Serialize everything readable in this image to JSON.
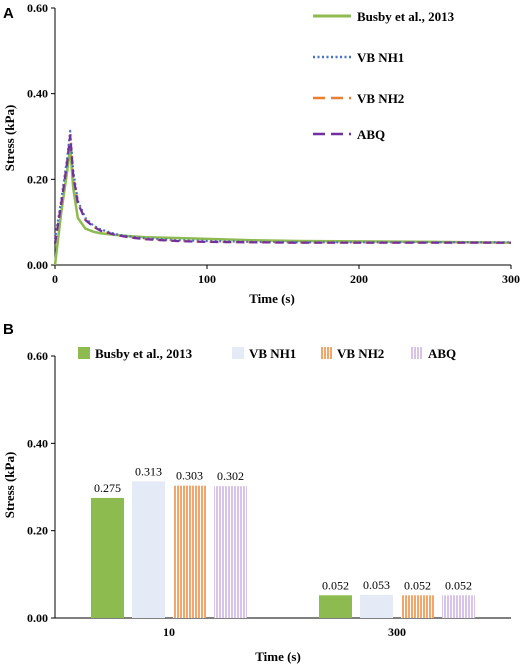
{
  "chart_data": [
    {
      "panel": "A",
      "type": "line",
      "xlabel": "Time (s)",
      "ylabel": "Stress (kPa)",
      "xlim": [
        0,
        300
      ],
      "ylim": [
        0,
        0.6
      ],
      "xticks": [
        "0",
        "100",
        "200",
        "300"
      ],
      "yticks": [
        "0.00",
        "0.20",
        "0.40",
        "0.60"
      ],
      "grid": false,
      "legend": "top-right",
      "series": [
        {
          "name": "Busby et al., 2013",
          "color": "#8dbb4f",
          "style": "solid",
          "x": [
            0,
            4,
            8,
            10,
            12,
            15,
            20,
            25,
            30,
            40,
            50,
            60,
            80,
            100,
            130,
            160,
            200,
            250,
            300
          ],
          "y": [
            0.0,
            0.12,
            0.22,
            0.275,
            0.18,
            0.11,
            0.085,
            0.078,
            0.074,
            0.07,
            0.067,
            0.065,
            0.063,
            0.061,
            0.058,
            0.056,
            0.055,
            0.054,
            0.052
          ]
        },
        {
          "name": "VB NH1",
          "color": "#4472c4",
          "style": "dotted",
          "x": [
            0,
            4,
            8,
            10,
            12,
            15,
            20,
            25,
            30,
            40,
            50,
            60,
            80,
            100,
            130,
            160,
            200,
            250,
            300
          ],
          "y": [
            0.06,
            0.15,
            0.25,
            0.313,
            0.22,
            0.15,
            0.11,
            0.093,
            0.083,
            0.072,
            0.066,
            0.062,
            0.058,
            0.056,
            0.054,
            0.053,
            0.053,
            0.053,
            0.053
          ]
        },
        {
          "name": "VB NH2",
          "color": "#ed7d31",
          "style": "dashed",
          "x": [
            0,
            4,
            8,
            10,
            12,
            15,
            20,
            25,
            30,
            40,
            50,
            60,
            80,
            100,
            130,
            160,
            200,
            250,
            300
          ],
          "y": [
            0.05,
            0.14,
            0.24,
            0.303,
            0.21,
            0.145,
            0.105,
            0.09,
            0.08,
            0.07,
            0.064,
            0.06,
            0.056,
            0.054,
            0.053,
            0.052,
            0.052,
            0.052,
            0.052
          ]
        },
        {
          "name": "ABQ",
          "color": "#7030a0",
          "style": "dashed",
          "x": [
            0,
            4,
            8,
            10,
            12,
            15,
            20,
            25,
            30,
            40,
            50,
            60,
            80,
            100,
            130,
            160,
            200,
            250,
            300
          ],
          "y": [
            0.05,
            0.14,
            0.24,
            0.302,
            0.21,
            0.145,
            0.105,
            0.09,
            0.08,
            0.07,
            0.064,
            0.06,
            0.056,
            0.054,
            0.053,
            0.052,
            0.052,
            0.052,
            0.052
          ]
        }
      ]
    },
    {
      "panel": "B",
      "type": "bar",
      "xlabel": "Time (s)",
      "ylabel": "Stress (kPa)",
      "ylim": [
        0,
        0.6
      ],
      "yticks": [
        "0.00",
        "0.20",
        "0.40",
        "0.60"
      ],
      "categories": [
        "10",
        "300"
      ],
      "grid": false,
      "legend": "top",
      "series": [
        {
          "name": "Busby et al., 2013",
          "color": "#8dbb4f",
          "pattern": "solid",
          "values": [
            0.275,
            0.052
          ],
          "labels": [
            "0.275",
            "0.052"
          ]
        },
        {
          "name": "VB NH1",
          "color": "#e4ebf7",
          "pattern": "solid",
          "values": [
            0.313,
            0.053
          ],
          "labels": [
            "0.313",
            "0.053"
          ]
        },
        {
          "name": "VB NH2",
          "color": "#f4a56c",
          "pattern": "stripes",
          "values": [
            0.303,
            0.052
          ],
          "labels": [
            "0.303",
            "0.052"
          ]
        },
        {
          "name": "ABQ",
          "color": "#d9c3e8",
          "pattern": "stripes",
          "values": [
            0.302,
            0.052
          ],
          "labels": [
            "0.302",
            "0.052"
          ]
        }
      ]
    }
  ]
}
